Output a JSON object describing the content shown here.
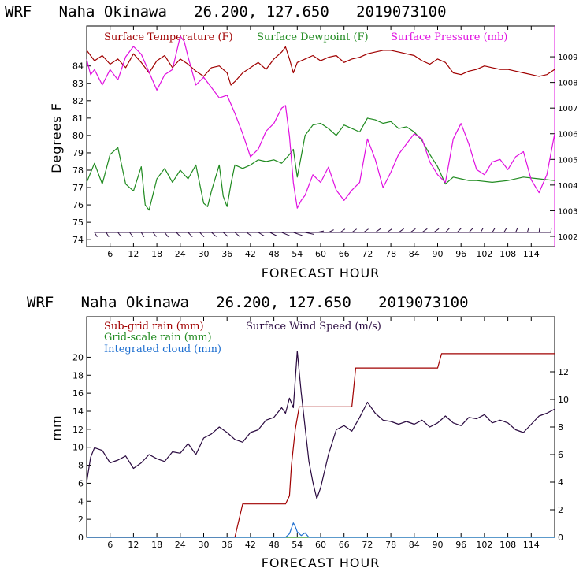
{
  "colors": {
    "temperature": "#a00000",
    "dewpoint": "#1f8a1f",
    "pressure": "#e010e0",
    "wind": "#2a0a40",
    "subgrid": "#a00000",
    "gridscale": "#1f8a1f",
    "cloud": "#1e6fd0",
    "axis": "#000000"
  },
  "chart_data": [
    {
      "type": "line",
      "title": "WRF   Naha Okinawa   26.200, 127.650   2019073100",
      "xlabel": "FORECAST HOUR",
      "ylabel": "Degrees F",
      "xlim": [
        0,
        120
      ],
      "ylim": [
        73.6,
        86.3
      ],
      "y2lim": [
        1001.6,
        1010.2
      ],
      "xticks": [
        6,
        12,
        18,
        24,
        30,
        36,
        42,
        48,
        54,
        60,
        66,
        72,
        78,
        84,
        90,
        96,
        102,
        108,
        114
      ],
      "xtick_labels": [
        "6",
        "12",
        "18",
        "24",
        "30",
        "36",
        "42",
        "48",
        "54",
        "60",
        "66",
        "72",
        "78",
        "84",
        "90",
        "96",
        "102",
        "108",
        "114"
      ],
      "yticks": [
        74,
        75,
        76,
        77,
        78,
        79,
        80,
        81,
        82,
        83,
        84
      ],
      "ytick_labels": [
        "74",
        "75",
        "76",
        "77",
        "78",
        "79",
        "80",
        "81",
        "82",
        "83",
        "84"
      ],
      "y2ticks": [
        1002,
        1003,
        1004,
        1005,
        1006,
        1007,
        1008,
        1009
      ],
      "y2tick_labels": [
        "1002",
        "1003",
        "1004",
        "1005",
        "1006",
        "1007",
        "1008",
        "1009"
      ],
      "series": [
        {
          "name": "Surface Temperature (F)",
          "axis": "left",
          "x": [
            0,
            2,
            4,
            6,
            8,
            10,
            12,
            14,
            16,
            18,
            20,
            22,
            24,
            26,
            28,
            30,
            32,
            34,
            36,
            37,
            38,
            40,
            42,
            44,
            46,
            48,
            50,
            51,
            52,
            53,
            54,
            56,
            58,
            60,
            62,
            64,
            66,
            68,
            70,
            72,
            74,
            76,
            78,
            80,
            82,
            84,
            86,
            88,
            90,
            92,
            94,
            96,
            98,
            100,
            102,
            104,
            106,
            108,
            110,
            112,
            114,
            116,
            118,
            120
          ],
          "values": [
            84.9,
            84.3,
            84.6,
            84.1,
            84.4,
            83.9,
            84.7,
            84.2,
            83.6,
            84.3,
            84.6,
            83.9,
            84.4,
            84.1,
            83.7,
            83.4,
            83.9,
            84.0,
            83.6,
            82.9,
            83.1,
            83.6,
            83.9,
            84.2,
            83.8,
            84.4,
            84.8,
            85.1,
            84.4,
            83.6,
            84.2,
            84.4,
            84.6,
            84.3,
            84.5,
            84.6,
            84.2,
            84.4,
            84.5,
            84.7,
            84.8,
            84.9,
            84.9,
            84.8,
            84.7,
            84.6,
            84.3,
            84.1,
            84.4,
            84.2,
            83.6,
            83.5,
            83.7,
            83.8,
            84.0,
            83.9,
            83.8,
            83.8,
            83.7,
            83.6,
            83.5,
            83.4,
            83.5,
            83.8
          ]
        },
        {
          "name": "Surface Dewpoint (F)",
          "axis": "left",
          "x": [
            0,
            2,
            4,
            6,
            8,
            10,
            12,
            14,
            15,
            16,
            18,
            20,
            22,
            24,
            26,
            28,
            30,
            31,
            32,
            34,
            35,
            36,
            37,
            38,
            40,
            42,
            44,
            46,
            48,
            50,
            52,
            53,
            54,
            55,
            56,
            58,
            60,
            62,
            64,
            66,
            68,
            70,
            72,
            74,
            76,
            78,
            80,
            82,
            84,
            86,
            88,
            90,
            92,
            94,
            96,
            98,
            100,
            104,
            108,
            112,
            116,
            120
          ],
          "values": [
            77.3,
            78.4,
            77.2,
            78.9,
            79.3,
            77.2,
            76.8,
            78.2,
            76.0,
            75.7,
            77.5,
            78.1,
            77.3,
            78.0,
            77.5,
            78.3,
            76.1,
            75.9,
            76.8,
            78.3,
            76.5,
            75.9,
            77.2,
            78.3,
            78.1,
            78.3,
            78.6,
            78.5,
            78.6,
            78.4,
            78.9,
            79.2,
            77.6,
            78.8,
            80.0,
            80.6,
            80.7,
            80.4,
            80.0,
            80.6,
            80.4,
            80.2,
            81.0,
            80.9,
            80.7,
            80.8,
            80.4,
            80.5,
            80.2,
            79.7,
            78.9,
            78.2,
            77.2,
            77.6,
            77.5,
            77.4,
            77.4,
            77.3,
            77.4,
            77.6,
            77.5,
            77.4
          ]
        },
        {
          "name": "Surface Pressure (mb)",
          "axis": "right",
          "x": [
            0,
            1,
            2,
            4,
            6,
            8,
            10,
            12,
            14,
            16,
            18,
            20,
            22,
            24,
            25,
            26,
            28,
            30,
            32,
            34,
            36,
            38,
            40,
            42,
            44,
            46,
            48,
            50,
            51,
            52,
            53,
            54,
            55,
            56,
            58,
            60,
            62,
            64,
            66,
            68,
            70,
            72,
            74,
            76,
            78,
            80,
            82,
            84,
            86,
            88,
            90,
            92,
            94,
            96,
            98,
            100,
            102,
            104,
            106,
            108,
            110,
            112,
            114,
            116,
            118,
            120
          ],
          "values": [
            1008.9,
            1008.3,
            1008.5,
            1007.9,
            1008.5,
            1008.1,
            1009.0,
            1009.4,
            1009.1,
            1008.4,
            1007.7,
            1008.3,
            1008.5,
            1009.8,
            1009.6,
            1009.0,
            1007.9,
            1008.2,
            1007.8,
            1007.4,
            1007.5,
            1006.8,
            1006.0,
            1005.1,
            1005.4,
            1006.1,
            1006.4,
            1007.0,
            1007.1,
            1005.9,
            1004.1,
            1003.1,
            1003.4,
            1003.6,
            1004.4,
            1004.1,
            1004.7,
            1003.8,
            1003.4,
            1003.8,
            1004.1,
            1005.8,
            1005.0,
            1003.9,
            1004.5,
            1005.2,
            1005.6,
            1006.0,
            1005.8,
            1004.9,
            1004.4,
            1004.1,
            1005.8,
            1006.4,
            1005.6,
            1004.6,
            1004.4,
            1004.9,
            1005.0,
            1004.6,
            1005.1,
            1005.3,
            1004.2,
            1003.7,
            1004.4,
            1006.0
          ]
        }
      ],
      "wind_barbs": {
        "description": "surface wind barbs drawn along the bottom of the panel",
        "x": [
          2,
          5,
          8,
          11,
          14,
          17,
          20,
          23,
          26,
          29,
          32,
          35,
          38,
          41,
          44,
          47,
          50,
          53,
          56,
          59,
          62,
          65,
          68,
          71,
          74,
          77,
          80,
          83,
          86,
          89,
          92,
          95,
          98,
          101,
          104,
          107,
          110,
          113,
          116,
          119
        ],
        "direction_deg": [
          200,
          200,
          205,
          205,
          200,
          205,
          205,
          210,
          210,
          210,
          215,
          215,
          215,
          220,
          225,
          230,
          235,
          240,
          250,
          290,
          310,
          320,
          320,
          320,
          320,
          320,
          320,
          320,
          320,
          320,
          330,
          330,
          330,
          340,
          340,
          340,
          345,
          350,
          355,
          355
        ],
        "speed_kt": [
          12,
          12,
          12,
          12,
          12,
          12,
          14,
          14,
          14,
          14,
          14,
          14,
          14,
          14,
          14,
          16,
          18,
          20,
          16,
          10,
          8,
          10,
          10,
          10,
          12,
          12,
          12,
          12,
          12,
          12,
          12,
          12,
          12,
          12,
          12,
          12,
          12,
          12,
          12,
          12
        ]
      }
    },
    {
      "type": "line",
      "title": "WRF   Naha Okinawa   26.200, 127.650   2019073100",
      "xlabel": "FORECAST HOUR",
      "ylabel": "mm",
      "xlim": [
        0,
        120
      ],
      "ylim": [
        0,
        24.5
      ],
      "y2lim": [
        0,
        16
      ],
      "xticks": [
        6,
        12,
        18,
        24,
        30,
        36,
        42,
        48,
        54,
        60,
        66,
        72,
        78,
        84,
        90,
        96,
        102,
        108,
        114
      ],
      "xtick_labels": [
        "6",
        "12",
        "18",
        "24",
        "30",
        "36",
        "42",
        "48",
        "54",
        "60",
        "66",
        "72",
        "78",
        "84",
        "90",
        "96",
        "102",
        "108",
        "114"
      ],
      "yticks": [
        0,
        2,
        4,
        6,
        8,
        10,
        12,
        14,
        16,
        18,
        20
      ],
      "ytick_labels": [
        "0",
        "2",
        "4",
        "6",
        "8",
        "10",
        "12",
        "14",
        "16",
        "18",
        "20"
      ],
      "y2ticks": [
        0,
        2,
        4,
        6,
        8,
        10,
        12
      ],
      "y2tick_labels": [
        "0",
        "2",
        "4",
        "6",
        "8",
        "10",
        "12"
      ],
      "series": [
        {
          "name": "Sub-grid rain (mm)",
          "axis": "left",
          "x": [
            0,
            38,
            40,
            51,
            52,
            52.5,
            53.5,
            54.5,
            55,
            68,
            69,
            90,
            91,
            120
          ],
          "values": [
            0,
            0,
            3.7,
            3.7,
            4.6,
            8.0,
            12.0,
            14.5,
            14.5,
            14.5,
            18.8,
            18.8,
            20.4,
            20.4
          ]
        },
        {
          "name": "Grid-scale rain (mm)",
          "axis": "left",
          "x": [
            0,
            120
          ],
          "values": [
            0,
            0
          ]
        },
        {
          "name": "Integrated cloud (mm)",
          "axis": "left",
          "x": [
            0,
            51,
            52,
            53,
            53.5,
            54,
            55,
            56,
            57,
            120
          ],
          "values": [
            0,
            0,
            0.4,
            1.6,
            1.2,
            0.6,
            0.2,
            0.5,
            0,
            0
          ]
        },
        {
          "name": "Surface Wind Speed (m/s)",
          "axis": "right",
          "x": [
            0,
            1,
            2,
            4,
            6,
            8,
            10,
            12,
            14,
            16,
            18,
            20,
            22,
            24,
            26,
            28,
            30,
            32,
            34,
            36,
            38,
            40,
            42,
            44,
            46,
            48,
            50,
            51,
            52,
            53,
            54,
            55,
            56,
            57,
            58,
            59,
            60,
            62,
            64,
            66,
            68,
            70,
            72,
            74,
            76,
            78,
            80,
            82,
            84,
            86,
            88,
            90,
            92,
            94,
            96,
            98,
            100,
            102,
            104,
            106,
            108,
            110,
            112,
            114,
            116,
            118,
            120
          ],
          "values": [
            4.0,
            5.8,
            6.5,
            6.3,
            5.4,
            5.6,
            5.9,
            5.0,
            5.4,
            6.0,
            5.7,
            5.5,
            6.2,
            6.1,
            6.8,
            6.0,
            7.2,
            7.5,
            8.0,
            7.6,
            7.1,
            6.9,
            7.6,
            7.8,
            8.5,
            8.7,
            9.4,
            9.0,
            10.1,
            9.4,
            13.5,
            10.5,
            8.0,
            5.5,
            4.0,
            2.8,
            3.6,
            6.0,
            7.8,
            8.1,
            7.7,
            8.7,
            9.8,
            9.0,
            8.5,
            8.4,
            8.2,
            8.4,
            8.2,
            8.5,
            8.0,
            8.3,
            8.8,
            8.3,
            8.1,
            8.7,
            8.6,
            8.9,
            8.3,
            8.5,
            8.3,
            7.8,
            7.6,
            8.2,
            8.8,
            9.0,
            9.3
          ]
        }
      ]
    }
  ]
}
